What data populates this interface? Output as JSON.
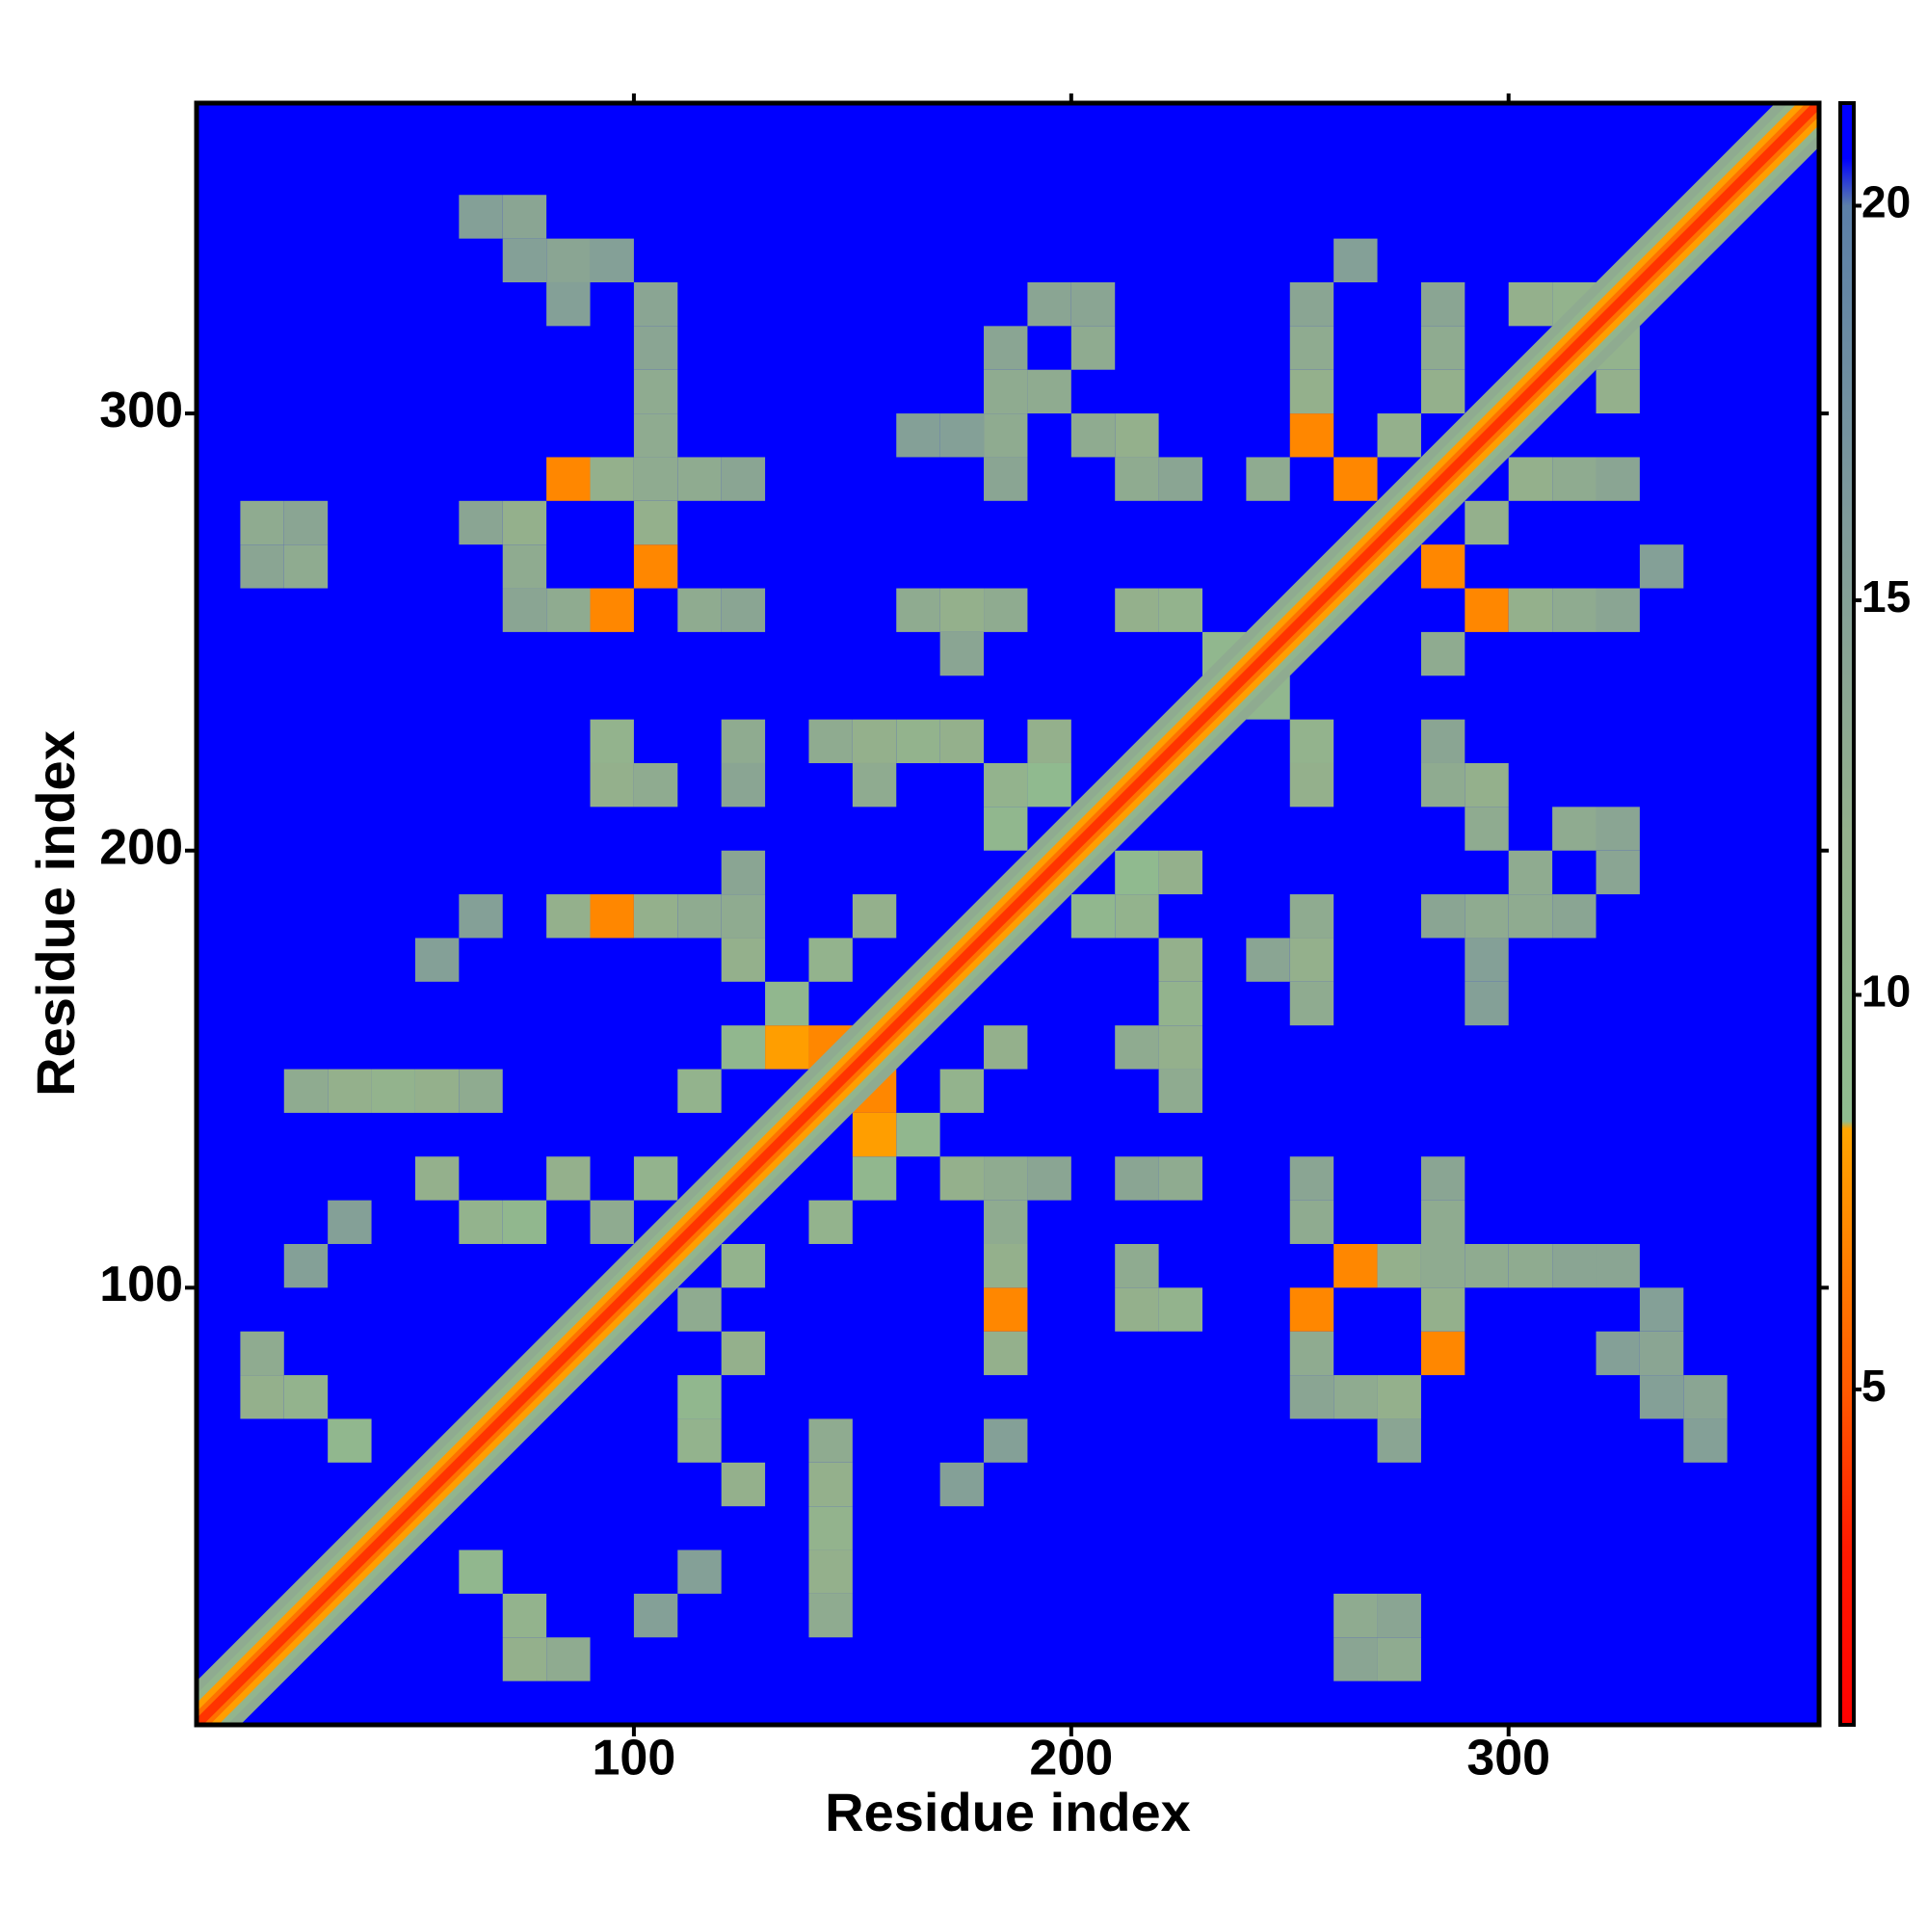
{
  "chart_data": {
    "type": "heatmap",
    "xlabel": "Residue index",
    "ylabel": "Residue index",
    "xlim": [
      0,
      371
    ],
    "ylim": [
      0,
      371
    ],
    "xticks": [
      100,
      200,
      300
    ],
    "yticks": [
      100,
      200,
      300
    ],
    "symmetric": true,
    "fill_value": 21,
    "clim": [
      0.75,
      21.3
    ],
    "cticks": [
      5,
      10,
      15,
      20
    ],
    "colorscale": [
      [
        0.75,
        "#ff0000"
      ],
      [
        3,
        "#ff1a00"
      ],
      [
        5,
        "#ff5a00"
      ],
      [
        8.3,
        "#ffa500"
      ],
      [
        8.4,
        "#8fbc8f"
      ],
      [
        12,
        "#94b08c"
      ],
      [
        16,
        "#7f9a9a"
      ],
      [
        20,
        "#5b7fa8"
      ],
      [
        20.6,
        "#0000ff"
      ],
      [
        21.3,
        "#0000ff"
      ]
    ],
    "diagonal": {
      "offsets": [
        10,
        7,
        5,
        3,
        1.5
      ],
      "values": [
        13,
        10.5,
        8,
        6,
        3.8
      ]
    },
    "x": [
      10,
      20,
      10,
      20,
      60,
      70,
      70,
      80,
      80,
      100,
      100,
      100,
      90,
      70,
      70,
      70,
      80,
      90,
      100,
      110,
      120,
      80,
      90,
      100,
      110,
      120,
      100,
      60,
      100,
      90,
      90,
      100,
      120,
      120,
      160,
      170,
      180,
      170,
      140,
      150,
      160,
      170,
      150,
      180,
      180,
      180,
      180,
      190,
      200,
      200,
      210,
      210,
      220,
      190,
      200,
      160,
      170,
      250,
      250,
      250,
      250,
      260,
      260,
      240,
      280,
      280,
      280,
      270,
      300,
      310,
      210,
      220,
      230,
      180,
      190,
      180,
      190,
      80,
      90,
      100,
      110,
      120,
      120,
      50,
      60,
      20,
      30,
      40,
      50,
      60,
      50,
      60,
      70,
      80,
      90,
      20,
      30,
      10,
      20,
      30,
      10,
      100,
      110,
      120,
      120,
      130,
      140,
      150,
      130,
      140
    ],
    "y": [
      260,
      260,
      270,
      270,
      340,
      340,
      330,
      330,
      320,
      300,
      310,
      320,
      330,
      270,
      260,
      250,
      280,
      280,
      280,
      280,
      280,
      250,
      250,
      260,
      250,
      250,
      270,
      270,
      290,
      210,
      220,
      210,
      220,
      210,
      250,
      250,
      250,
      240,
      220,
      220,
      220,
      220,
      210,
      280,
      290,
      300,
      310,
      300,
      290,
      310,
      290,
      280,
      280,
      320,
      320,
      290,
      290,
      290,
      300,
      310,
      320,
      280,
      330,
      280,
      300,
      310,
      320,
      290,
      320,
      320,
      250,
      250,
      240,
      210,
      220,
      200,
      210,
      180,
      180,
      180,
      180,
      170,
      180,
      170,
      180,
      140,
      140,
      140,
      140,
      140,
      120,
      110,
      110,
      120,
      110,
      100,
      110,
      70,
      70,
      60,
      80,
      120,
      140,
      150,
      190,
      160,
      170,
      180,
      150,
      150
    ],
    "values": [
      14,
      13,
      13,
      14,
      15,
      14,
      15,
      14,
      15,
      13,
      14,
      14,
      15,
      12,
      13,
      14,
      7,
      12,
      13,
      13,
      14,
      13,
      7,
      7,
      13,
      14,
      12,
      14,
      13,
      12,
      11,
      13,
      13,
      14,
      13,
      12,
      13,
      14,
      13,
      12,
      11,
      12,
      13,
      14,
      13,
      13,
      14,
      13,
      13,
      13,
      12,
      13,
      14,
      14,
      14,
      15,
      15,
      7,
      12,
      13,
      14,
      7,
      15,
      13,
      12,
      13,
      14,
      12,
      12,
      11,
      12,
      11,
      10,
      11,
      12,
      10,
      9,
      12,
      7,
      12,
      13,
      12,
      13,
      15,
      15,
      13,
      12,
      11,
      12,
      13,
      12,
      11,
      10,
      12,
      13,
      15,
      15,
      12,
      11,
      10,
      13,
      11,
      11,
      10,
      14,
      10,
      11,
      12,
      8,
      7
    ]
  }
}
